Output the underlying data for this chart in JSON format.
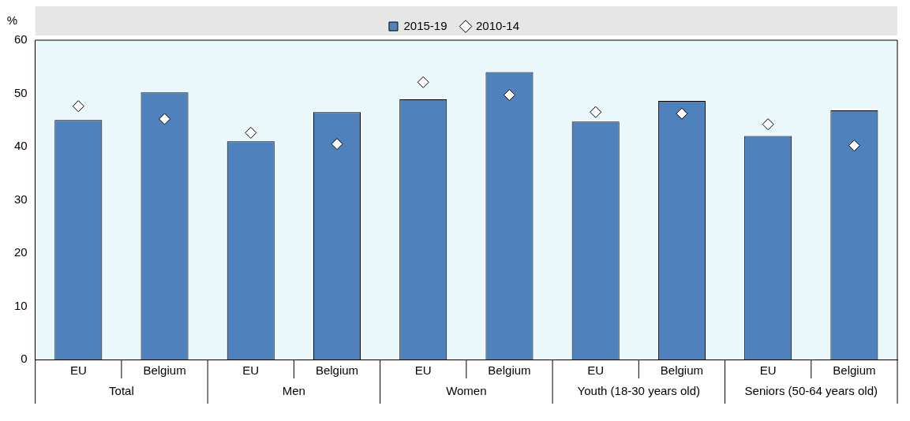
{
  "chart_data": {
    "type": "bar",
    "ylabel": "%",
    "categories": [
      "EU",
      "Belgium",
      "EU",
      "Belgium",
      "EU",
      "Belgium",
      "EU",
      "Belgium",
      "EU",
      "Belgium"
    ],
    "series": [
      {
        "name": "2015-19",
        "color": "#4f81bd",
        "values": [
          45.0,
          50.2,
          41.0,
          46.5,
          48.9,
          54.0,
          44.7,
          48.6,
          42.0,
          46.8
        ]
      },
      {
        "name": "2010-14",
        "type": "scatter",
        "marker": "diamond",
        "color": "#ffffff",
        "values": [
          47.6,
          45.2,
          42.6,
          40.5,
          52.1,
          49.7,
          46.5,
          46.2,
          44.2,
          40.2
        ]
      }
    ],
    "annotations": [
      "Total",
      "Men",
      "Women",
      "Youth (18-30 years old)",
      "Seniors (50-64 years old)"
    ],
    "ylim": [
      0,
      60
    ],
    "yticks": [
      0,
      10,
      20,
      30,
      40,
      50,
      60
    ],
    "grid": false,
    "legend": "top"
  }
}
